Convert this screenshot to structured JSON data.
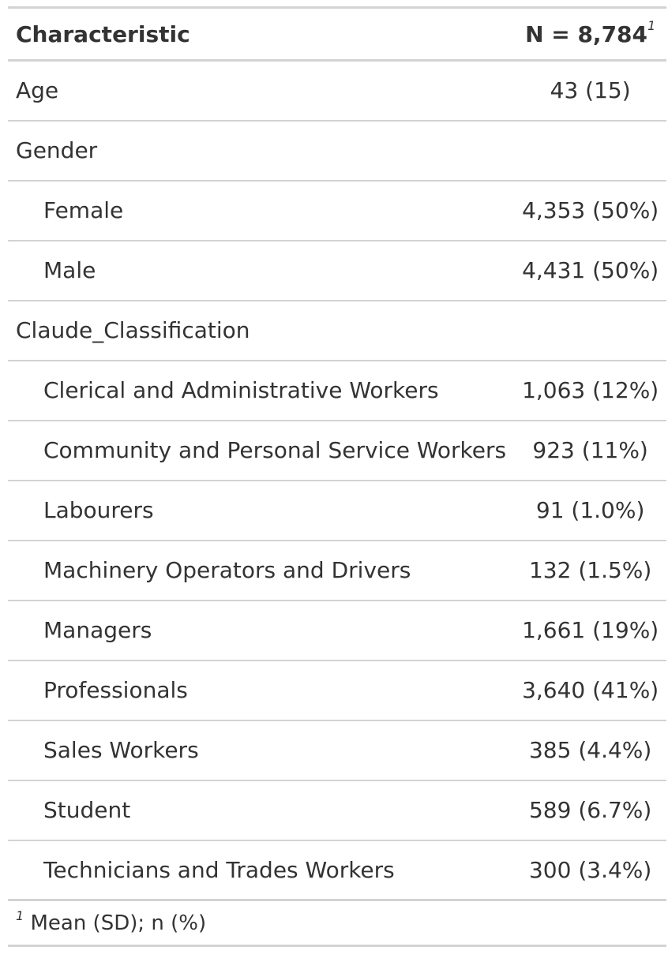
{
  "header": {
    "characteristic": "Characteristic",
    "n_label": "N = 8,784",
    "n_footnote_mark": "1"
  },
  "rows": [
    {
      "label": "Age",
      "value": "43 (15)",
      "indent": false
    },
    {
      "label": "Gender",
      "value": "",
      "indent": false
    },
    {
      "label": "Female",
      "value": "4,353 (50%)",
      "indent": true
    },
    {
      "label": "Male",
      "value": "4,431 (50%)",
      "indent": true
    },
    {
      "label": "Claude_Classification",
      "value": "",
      "indent": false
    },
    {
      "label": "Clerical and Administrative Workers",
      "value": "1,063 (12%)",
      "indent": true
    },
    {
      "label": "Community and Personal Service Workers",
      "value": "923 (11%)",
      "indent": true
    },
    {
      "label": "Labourers",
      "value": "91 (1.0%)",
      "indent": true
    },
    {
      "label": "Machinery Operators and Drivers",
      "value": "132 (1.5%)",
      "indent": true
    },
    {
      "label": "Managers",
      "value": "1,661 (19%)",
      "indent": true
    },
    {
      "label": "Professionals",
      "value": "3,640 (41%)",
      "indent": true
    },
    {
      "label": "Sales Workers",
      "value": "385 (4.4%)",
      "indent": true
    },
    {
      "label": "Student",
      "value": "589 (6.7%)",
      "indent": true
    },
    {
      "label": "Technicians and Trades Workers",
      "value": "300 (3.4%)",
      "indent": true
    }
  ],
  "footnote": {
    "mark": "1",
    "text": "Mean (SD); n (%)"
  }
}
